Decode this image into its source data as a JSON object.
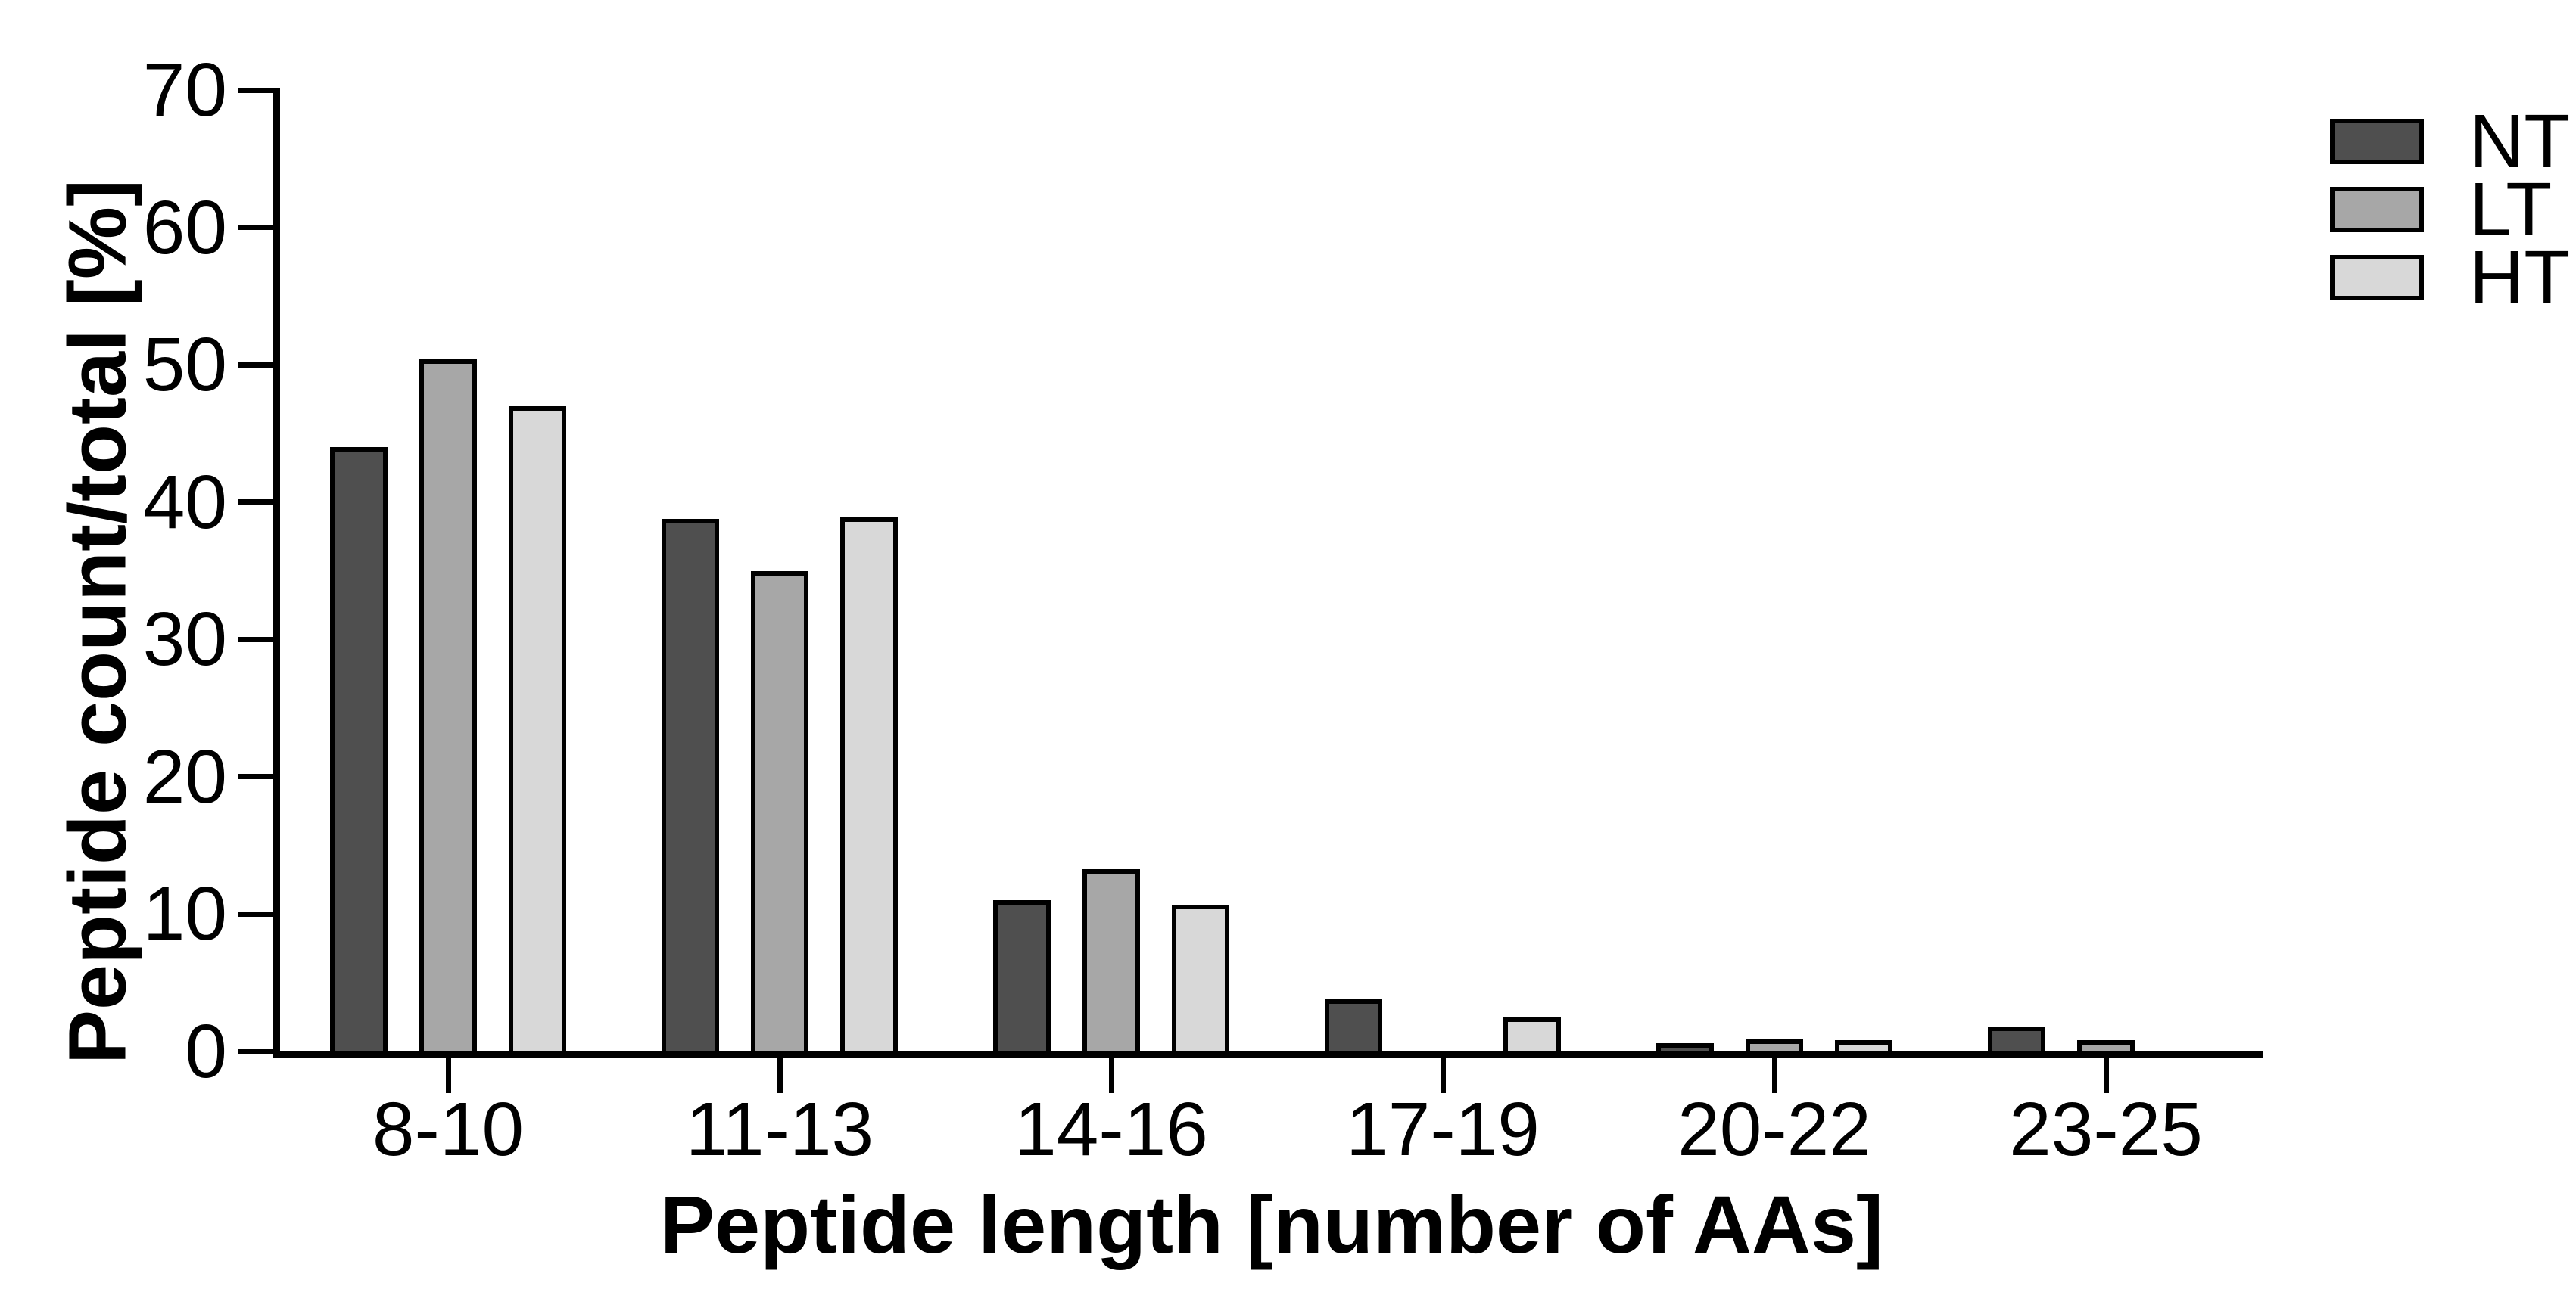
{
  "figure": {
    "background": "#ffffff",
    "text_color": "#000000",
    "bar_border_color": "#000000"
  },
  "chart_data": {
    "type": "bar",
    "title": "",
    "xlabel": "Peptide length [number of AAs]",
    "ylabel": "Peptide count/total [%]",
    "categories": [
      "8-10",
      "11-13",
      "14-16",
      "17-19",
      "20-22",
      "23-25"
    ],
    "series": [
      {
        "name": "NT",
        "color": "#4f4f4f",
        "values": [
          44.0,
          38.8,
          11.0,
          3.8,
          0.6,
          1.8
        ]
      },
      {
        "name": "LT",
        "color": "#a7a7a7",
        "values": [
          50.4,
          35.0,
          13.3,
          0,
          0.9,
          0.8
        ]
      },
      {
        "name": "HT",
        "color": "#d8d8d8",
        "values": [
          47.0,
          38.9,
          10.7,
          2.5,
          0.85,
          0
        ]
      }
    ],
    "ylim": [
      0,
      70
    ],
    "ytick_step": 10,
    "yticks": [
      "0",
      "10",
      "20",
      "30",
      "40",
      "50",
      "60",
      "70"
    ],
    "grid": false,
    "legend_position": "top-right"
  }
}
